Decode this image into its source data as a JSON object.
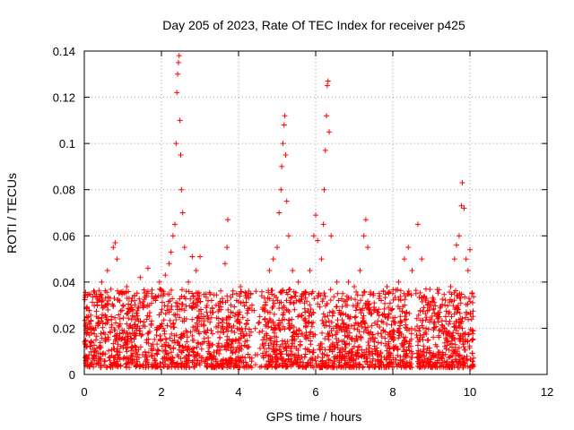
{
  "chart_data": {
    "type": "scatter",
    "title": "Day 205 of 2023, Rate Of TEC Index for receiver p425",
    "xlabel": "GPS time / hours",
    "ylabel": "ROTI / TECUs",
    "xlim": [
      0,
      12
    ],
    "ylim": [
      0,
      0.14
    ],
    "x_ticks": [
      0,
      2,
      4,
      6,
      8,
      10,
      12
    ],
    "x_tick_labels": [
      "0",
      "2",
      "4",
      "6",
      "8",
      "10",
      "12"
    ],
    "y_ticks": [
      0,
      0.02,
      0.04,
      0.06,
      0.08,
      0.1,
      0.12,
      0.14
    ],
    "y_tick_labels": [
      "0",
      "0.02",
      "0.04",
      "0.06",
      "0.08",
      "0.1",
      "0.12",
      "0.14"
    ],
    "grid": true,
    "marker": "plus",
    "marker_color": "#ff0000",
    "series": [
      {
        "name": "ROTI",
        "points": [
          [
            0.05,
            0.018
          ],
          [
            0.1,
            0.025
          ],
          [
            0.15,
            0.012
          ],
          [
            0.2,
            0.02
          ],
          [
            0.3,
            0.015
          ],
          [
            0.45,
            0.04
          ],
          [
            0.55,
            0.03
          ],
          [
            0.6,
            0.045
          ],
          [
            0.7,
            0.025
          ],
          [
            0.75,
            0.055
          ],
          [
            0.8,
            0.057
          ],
          [
            0.85,
            0.05
          ],
          [
            0.9,
            0.035
          ],
          [
            1.0,
            0.03
          ],
          [
            1.1,
            0.038
          ],
          [
            1.2,
            0.028
          ],
          [
            1.3,
            0.034
          ],
          [
            1.45,
            0.042
          ],
          [
            1.55,
            0.03
          ],
          [
            1.65,
            0.046
          ],
          [
            1.75,
            0.035
          ],
          [
            1.85,
            0.032
          ],
          [
            1.95,
            0.04
          ],
          [
            2.05,
            0.036
          ],
          [
            2.1,
            0.043
          ],
          [
            2.2,
            0.048
          ],
          [
            2.25,
            0.053
          ],
          [
            2.3,
            0.06
          ],
          [
            2.35,
            0.065
          ],
          [
            2.38,
            0.1
          ],
          [
            2.4,
            0.122
          ],
          [
            2.42,
            0.13
          ],
          [
            2.44,
            0.135
          ],
          [
            2.46,
            0.138
          ],
          [
            2.48,
            0.11
          ],
          [
            2.5,
            0.095
          ],
          [
            2.52,
            0.08
          ],
          [
            2.55,
            0.07
          ],
          [
            2.6,
            0.055
          ],
          [
            2.7,
            0.04
          ],
          [
            2.8,
            0.051
          ],
          [
            2.9,
            0.045
          ],
          [
            3.0,
            0.051
          ],
          [
            3.1,
            0.025
          ],
          [
            3.3,
            0.032
          ],
          [
            3.5,
            0.028
          ],
          [
            3.65,
            0.048
          ],
          [
            3.7,
            0.055
          ],
          [
            3.72,
            0.067
          ],
          [
            3.8,
            0.03
          ],
          [
            3.95,
            0.035
          ],
          [
            4.05,
            0.038
          ],
          [
            4.2,
            0.033
          ],
          [
            4.35,
            0.03
          ],
          [
            4.45,
            0.036
          ],
          [
            4.55,
            0.025
          ],
          [
            4.7,
            0.03
          ],
          [
            4.8,
            0.045
          ],
          [
            4.9,
            0.05
          ],
          [
            5.0,
            0.055
          ],
          [
            5.05,
            0.07
          ],
          [
            5.1,
            0.08
          ],
          [
            5.12,
            0.09
          ],
          [
            5.15,
            0.1
          ],
          [
            5.18,
            0.108
          ],
          [
            5.2,
            0.112
          ],
          [
            5.22,
            0.095
          ],
          [
            5.25,
            0.075
          ],
          [
            5.3,
            0.06
          ],
          [
            5.4,
            0.045
          ],
          [
            5.55,
            0.04
          ],
          [
            5.7,
            0.035
          ],
          [
            5.85,
            0.045
          ],
          [
            5.95,
            0.06
          ],
          [
            6.0,
            0.069
          ],
          [
            6.05,
            0.058
          ],
          [
            6.15,
            0.05
          ],
          [
            6.2,
            0.065
          ],
          [
            6.22,
            0.08
          ],
          [
            6.25,
            0.097
          ],
          [
            6.28,
            0.112
          ],
          [
            6.3,
            0.125
          ],
          [
            6.32,
            0.127
          ],
          [
            6.35,
            0.105
          ],
          [
            6.4,
            0.06
          ],
          [
            6.55,
            0.04
          ],
          [
            6.7,
            0.035
          ],
          [
            6.85,
            0.04
          ],
          [
            7.0,
            0.038
          ],
          [
            7.15,
            0.045
          ],
          [
            7.25,
            0.06
          ],
          [
            7.3,
            0.067
          ],
          [
            7.35,
            0.055
          ],
          [
            7.5,
            0.035
          ],
          [
            7.7,
            0.032
          ],
          [
            7.85,
            0.038
          ],
          [
            8.0,
            0.035
          ],
          [
            8.15,
            0.04
          ],
          [
            8.3,
            0.05
          ],
          [
            8.4,
            0.055
          ],
          [
            8.5,
            0.045
          ],
          [
            8.6,
            0.035
          ],
          [
            8.65,
            0.065
          ],
          [
            8.75,
            0.05
          ],
          [
            8.9,
            0.03
          ],
          [
            9.05,
            0.028
          ],
          [
            9.2,
            0.025
          ],
          [
            9.35,
            0.03
          ],
          [
            9.5,
            0.038
          ],
          [
            9.6,
            0.05
          ],
          [
            9.65,
            0.056
          ],
          [
            9.72,
            0.06
          ],
          [
            9.78,
            0.073
          ],
          [
            9.8,
            0.083
          ],
          [
            9.85,
            0.072
          ],
          [
            9.9,
            0.05
          ],
          [
            9.95,
            0.045
          ],
          [
            10.0,
            0.054
          ],
          [
            10.05,
            0.035
          ]
        ]
      }
    ]
  }
}
